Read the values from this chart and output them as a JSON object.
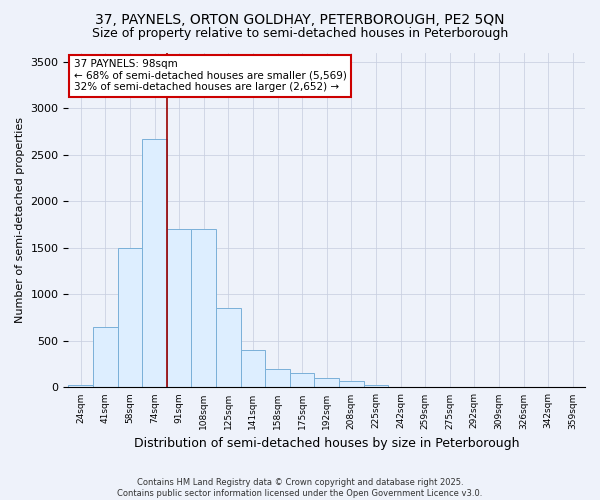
{
  "title": "37, PAYNELS, ORTON GOLDHAY, PETERBOROUGH, PE2 5QN",
  "subtitle": "Size of property relative to semi-detached houses in Peterborough",
  "xlabel": "Distribution of semi-detached houses by size in Peterborough",
  "ylabel": "Number of semi-detached properties",
  "categories": [
    "24sqm",
    "41sqm",
    "58sqm",
    "74sqm",
    "91sqm",
    "108sqm",
    "125sqm",
    "141sqm",
    "158sqm",
    "175sqm",
    "192sqm",
    "208sqm",
    "225sqm",
    "242sqm",
    "259sqm",
    "275sqm",
    "292sqm",
    "309sqm",
    "326sqm",
    "342sqm",
    "359sqm"
  ],
  "values": [
    30,
    650,
    1500,
    2670,
    1700,
    1700,
    850,
    400,
    200,
    150,
    100,
    70,
    30,
    10,
    5,
    3,
    2,
    1,
    1,
    0,
    0
  ],
  "bar_color": "#ddeeff",
  "bar_edge_color": "#7ab0d8",
  "vline_color": "#990000",
  "vline_x": 3.5,
  "annotation_title": "37 PAYNELS: 98sqm",
  "annotation_line1": "← 68% of semi-detached houses are smaller (5,569)",
  "annotation_line2": "32% of semi-detached houses are larger (2,652) →",
  "annotation_box_facecolor": "#ffffff",
  "annotation_box_edgecolor": "#cc0000",
  "footer1": "Contains HM Land Registry data © Crown copyright and database right 2025.",
  "footer2": "Contains public sector information licensed under the Open Government Licence v3.0.",
  "ylim": [
    0,
    3600
  ],
  "background_color": "#eef2fa",
  "plot_background": "#eef2fa",
  "title_fontsize": 10,
  "subtitle_fontsize": 9,
  "ylabel_fontsize": 8,
  "xlabel_fontsize": 9
}
